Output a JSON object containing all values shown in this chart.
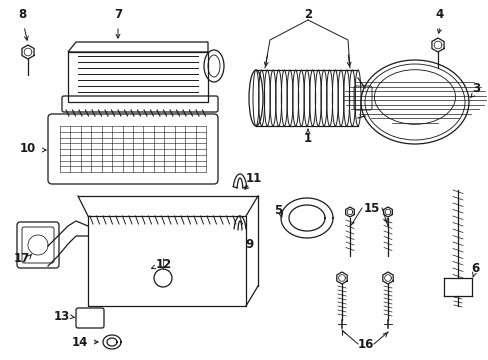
{
  "bg_color": "#ffffff",
  "line_color": "#1a1a1a",
  "label_color": "#000000",
  "lw": 0.9,
  "label_fs": 8.5
}
